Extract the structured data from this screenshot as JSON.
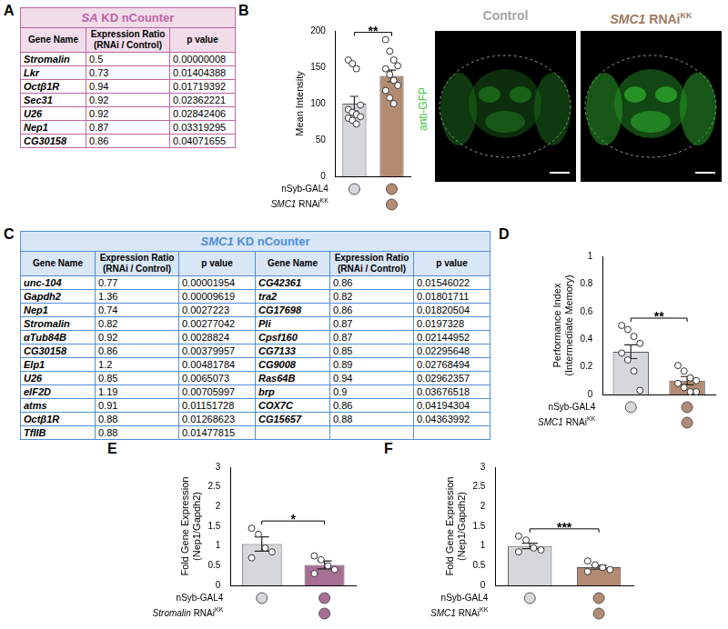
{
  "tables": [
    {
      "panel": "A",
      "title": "SA KD nCounter",
      "color": "#c0649f",
      "columns": [
        "Gene Name",
        "Expression Ratio (RNAi / Control)",
        "p value"
      ],
      "blocks": [
        [
          [
            "Stromalin",
            "0.5",
            "0.00000008"
          ],
          [
            "Lkr",
            "0.73",
            "0.01404388"
          ],
          [
            "Octβ1R",
            "0.94",
            "0.01719392"
          ],
          [
            "Sec31",
            "0.92",
            "0.02362221"
          ],
          [
            "U26",
            "0.92",
            "0.02842406"
          ],
          [
            "Nep1",
            "0.87",
            "0.03319295"
          ],
          [
            "CG30158",
            "0.86",
            "0.04071655"
          ]
        ]
      ]
    },
    {
      "panel": "C",
      "title": "SMC1 KD nCounter",
      "color": "#4e8fd6",
      "columns": [
        "Gene Name",
        "Expression Ratio (RNAi / Control)",
        "p value"
      ],
      "blocks": [
        [
          [
            "unc-104",
            "0.77",
            "0.00001954"
          ],
          [
            "Gapdh2",
            "1.36",
            "0.00009619"
          ],
          [
            "Nep1",
            "0.74",
            "0.0027223"
          ],
          [
            "Stromalin",
            "0.82",
            "0.00277042"
          ],
          [
            "αTub84B",
            "0.92",
            "0.0028824"
          ],
          [
            "CG30158",
            "0.86",
            "0.00379957"
          ],
          [
            "Elp1",
            "1.2",
            "0.00481784"
          ],
          [
            "U26",
            "0.85",
            "0.0065073"
          ],
          [
            "eIF2D",
            "1.19",
            "0.00705997"
          ],
          [
            "atms",
            "0.91",
            "0.01151728"
          ],
          [
            "Octβ1R",
            "0.88",
            "0.01268623"
          ],
          [
            "TfIIB",
            "0.88",
            "0.01477815"
          ]
        ],
        [
          [
            "CG42361",
            "0.86",
            "0.01546022"
          ],
          [
            "tra2",
            "0.82",
            "0.01801711"
          ],
          [
            "CG17698",
            "0.86",
            "0.01820504"
          ],
          [
            "Pli",
            "0.87",
            "0.0197328"
          ],
          [
            "Cpsf160",
            "0.87",
            "0.02144952"
          ],
          [
            "CG7133",
            "0.85",
            "0.02295648"
          ],
          [
            "CG9008",
            "0.89",
            "0.02768494"
          ],
          [
            "Ras64B",
            "0.94",
            "0.02962357"
          ],
          [
            "brp",
            "0.9",
            "0.03676518"
          ],
          [
            "COX7C",
            "0.86",
            "0.04194304"
          ],
          [
            "CG15657",
            "0.88",
            "0.04363992"
          ]
        ]
      ]
    }
  ],
  "images": {
    "panel": "B",
    "stain": "anti-GFP",
    "stain_color": "#3fbf3f",
    "labels": [
      {
        "text": "Control",
        "color": "#a6a6a6"
      },
      {
        "text": "SMC1 RNAi",
        "sup": "KK",
        "color": "#a07a63"
      }
    ]
  },
  "chart_data": [
    {
      "panel": "B",
      "type": "bar",
      "y_label": "Mean Intensity",
      "categories": [
        null,
        null
      ],
      "values": [
        100,
        138
      ],
      "errors": [
        10,
        8
      ],
      "colors": [
        "#d5d8da",
        "#b38a72"
      ],
      "points": [
        [
          160,
          155,
          148,
          98,
          92,
          88,
          85,
          82,
          80,
          77,
          72
        ],
        [
          188,
          172,
          160,
          152,
          148,
          140,
          132,
          125,
          118,
          108,
          100
        ]
      ],
      "ylim": [
        0,
        200
      ],
      "yticks": [
        0,
        50,
        100,
        150,
        200
      ],
      "grid": false,
      "tick_labels": "y",
      "significance": "**",
      "genotype": [
        {
          "text": "nSyb-GAL4",
          "present": [
            true,
            true
          ]
        },
        {
          "text": "SMC1 RNAi",
          "sup": "KK",
          "present": [
            false,
            true
          ]
        }
      ]
    },
    {
      "panel": "D",
      "type": "bar",
      "y_label": [
        "Performance Index",
        "(Intermediate Memory)"
      ],
      "categories": [
        null,
        null
      ],
      "values": [
        0.31,
        0.1
      ],
      "errors": [
        0.05,
        0.03
      ],
      "colors": [
        "#d5d8da",
        "#b38a72"
      ],
      "points": [
        [
          0.5,
          0.47,
          0.42,
          0.37,
          0.3,
          0.25,
          0.17,
          0.03
        ],
        [
          0.21,
          0.17,
          0.12,
          0.1,
          0.08,
          0.05,
          0.02,
          0.02
        ]
      ],
      "ylim": [
        0,
        1
      ],
      "yticks": [
        0,
        0.2,
        0.4,
        0.6,
        0.8,
        1
      ],
      "grid": false,
      "tick_labels": "y",
      "significance": "**",
      "genotype": [
        {
          "text": "nSyb-GAL4",
          "present": [
            true,
            true
          ]
        },
        {
          "text": "SMC1 RNAi",
          "sup": "KK",
          "present": [
            false,
            true
          ]
        }
      ]
    },
    {
      "panel": "E",
      "type": "bar",
      "y_label": [
        "Fold Gene Expression",
        "(Nep1/Gapdh2)"
      ],
      "categories": [
        null,
        null
      ],
      "values": [
        1.05,
        0.52
      ],
      "errors": [
        0.18,
        0.1
      ],
      "colors": [
        "#d5d8da",
        "#a96e93"
      ],
      "points": [
        [
          1.45,
          1.3,
          0.95,
          0.85,
          0.7
        ],
        [
          0.75,
          0.65,
          0.5,
          0.4,
          0.3
        ]
      ],
      "ylim": [
        0,
        3
      ],
      "yticks": [
        0,
        0.5,
        1,
        1.5,
        2,
        2.5,
        3
      ],
      "grid": false,
      "tick_labels": "y",
      "significance": "*",
      "genotype": [
        {
          "text": "nSyb-GAL4",
          "present": [
            true,
            true
          ]
        },
        {
          "text": "Stromalin RNAi",
          "sup": "KK",
          "present": [
            false,
            true
          ]
        }
      ]
    },
    {
      "panel": "F",
      "type": "bar",
      "y_label": [
        "Fold Gene Expression",
        "(Nep1/Gapdh2)"
      ],
      "categories": [
        null,
        null
      ],
      "values": [
        1.0,
        0.46
      ],
      "errors": [
        0.07,
        0.05
      ],
      "colors": [
        "#d5d8da",
        "#b38a72"
      ],
      "points": [
        [
          1.25,
          1.15,
          0.95,
          0.9,
          0.85
        ],
        [
          0.62,
          0.52,
          0.45,
          0.4,
          0.35
        ]
      ],
      "ylim": [
        0,
        3
      ],
      "yticks": [
        0,
        0.5,
        1,
        1.5,
        2,
        2.5,
        3
      ],
      "grid": false,
      "tick_labels": "y",
      "significance": "***",
      "genotype": [
        {
          "text": "nSyb-GAL4",
          "present": [
            true,
            true
          ]
        },
        {
          "text": "SMC1 RNAi",
          "sup": "KK",
          "present": [
            false,
            true
          ]
        }
      ]
    }
  ]
}
